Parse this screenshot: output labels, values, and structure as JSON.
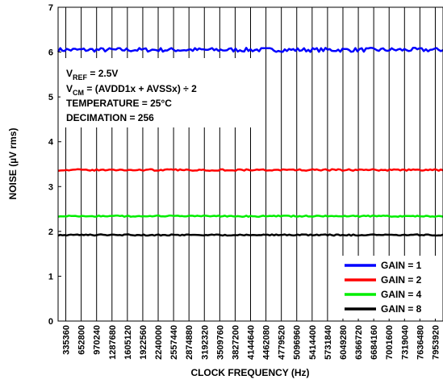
{
  "chart_data": {
    "type": "line",
    "xlabel": "CLOCK FREQUENCY (Hz)",
    "ylabel": "NOISE (µV rms)",
    "ylim": [
      0,
      7
    ],
    "yticks": [
      "0",
      "1",
      "2",
      "3",
      "4",
      "5",
      "6",
      "7"
    ],
    "xticks": [
      "335360",
      "652800",
      "970240",
      "1287680",
      "1605120",
      "1922560",
      "2240000",
      "2557440",
      "2874880",
      "3192320",
      "3509760",
      "3827200",
      "4144640",
      "4462080",
      "4779520",
      "5096960",
      "5414400",
      "5731840",
      "6049280",
      "6366720",
      "6684160",
      "7001600",
      "7319040",
      "7636480",
      "7953920"
    ],
    "grid": "vertical",
    "legend_position": "bottom-right",
    "annotation": {
      "vref_main": "V",
      "vref_sub": "REF",
      "vref_rest": " = 2.5V",
      "vcm_main": "V",
      "vcm_sub": "CM",
      "vcm_rest": " = (AVDD1x + AVSSx) ÷ 2",
      "temperature": "TEMPERATURE = 25°C",
      "decimation": "DECIMATION = 256"
    },
    "series": [
      {
        "name": "GAIN = 1",
        "color": "#0000ff",
        "approx_value": 6.05,
        "peak": 6.18
      },
      {
        "name": "GAIN = 2",
        "color": "#ff0000",
        "approx_value": 3.37,
        "peak": 3.42
      },
      {
        "name": "GAIN = 4",
        "color": "#00ee00",
        "approx_value": 2.34,
        "peak": 2.38
      },
      {
        "name": "GAIN = 8",
        "color": "#000000",
        "approx_value": 1.92,
        "peak": 1.96
      }
    ]
  }
}
